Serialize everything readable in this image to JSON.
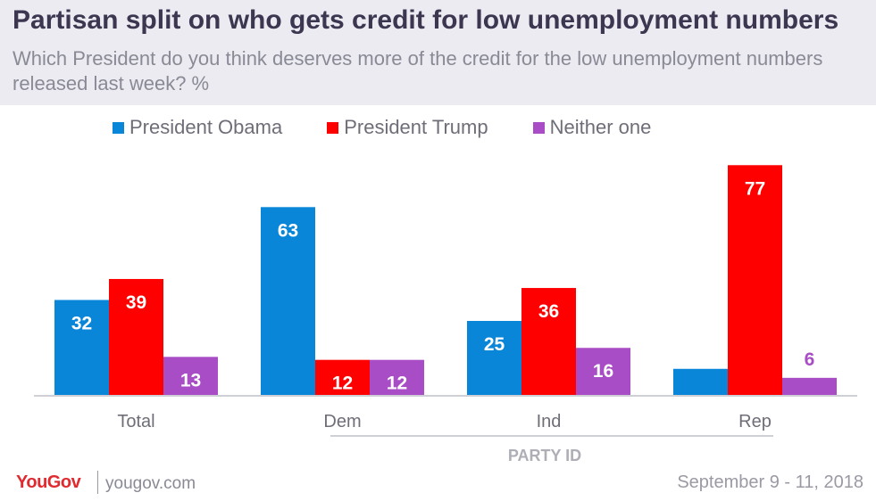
{
  "header": {
    "title": "Partisan split on who gets credit for low unemployment numbers",
    "subtitle": "Which President do you think deserves more of the credit for the low unemployment numbers released last week? %"
  },
  "legend": [
    {
      "label": "President Obama",
      "color": "#0a86d9"
    },
    {
      "label": "President Trump",
      "color": "#ff0000"
    },
    {
      "label": "Neither one",
      "color": "#a94dc6"
    }
  ],
  "chart_data": {
    "type": "bar",
    "title": "Partisan split on who gets credit for low unemployment numbers",
    "subtitle": "Which President do you think deserves more of the credit for the low unemployment numbers released last week? %",
    "categories": [
      "Total",
      "Dem",
      "Ind",
      "Rep"
    ],
    "group_label": "PARTY ID",
    "series": [
      {
        "name": "President Obama",
        "values": [
          32,
          63,
          25,
          9
        ],
        "color": "#0a86d9"
      },
      {
        "name": "President Trump",
        "values": [
          39,
          12,
          36,
          77
        ],
        "color": "#ff0000"
      },
      {
        "name": "Neither one",
        "values": [
          13,
          12,
          16,
          6
        ],
        "color": "#a94dc6"
      }
    ],
    "ylim": [
      0,
      80
    ],
    "grid": false,
    "legend_position": "top"
  },
  "footer": {
    "logo": "YouGov",
    "url": "yougov.com",
    "date": "September 9 - 11, 2018"
  }
}
